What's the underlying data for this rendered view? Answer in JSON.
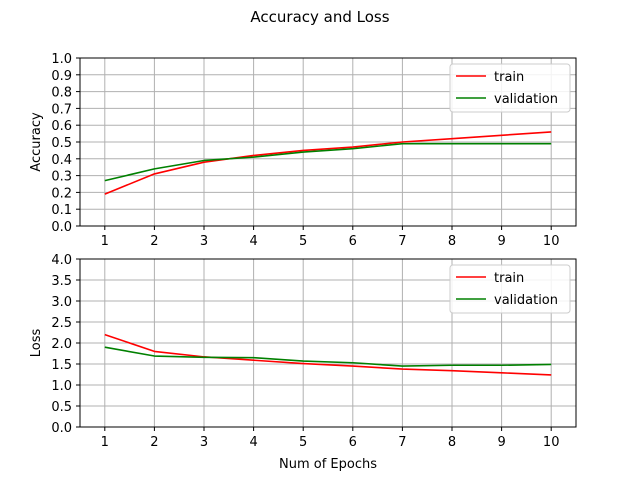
{
  "figure": {
    "title": "Accuracy and Loss"
  },
  "chart_data": [
    {
      "type": "line",
      "title": "",
      "xlabel": "",
      "ylabel": "Accuracy",
      "x": [
        1,
        2,
        3,
        4,
        5,
        6,
        7,
        8,
        9,
        10
      ],
      "xlim": [
        0.5,
        10.5
      ],
      "ylim": [
        0,
        1.0
      ],
      "yticks": [
        0.0,
        0.1,
        0.2,
        0.3,
        0.4,
        0.5,
        0.6,
        0.7,
        0.8,
        0.9,
        1.0
      ],
      "ytick_labels": [
        "0.0",
        "0.1",
        "0.2",
        "0.3",
        "0.4",
        "0.5",
        "0.6",
        "0.7",
        "0.8",
        "0.9",
        "1.0"
      ],
      "grid": true,
      "legend_position": "top-right",
      "series": [
        {
          "name": "train",
          "color": "#ff0000",
          "values": [
            0.19,
            0.31,
            0.38,
            0.42,
            0.45,
            0.47,
            0.5,
            0.52,
            0.54,
            0.56
          ]
        },
        {
          "name": "validation",
          "color": "#008000",
          "values": [
            0.27,
            0.34,
            0.39,
            0.41,
            0.44,
            0.46,
            0.49,
            0.49,
            0.49,
            0.49
          ]
        }
      ]
    },
    {
      "type": "line",
      "title": "",
      "xlabel": "Num of Epochs",
      "ylabel": "Loss",
      "x": [
        1,
        2,
        3,
        4,
        5,
        6,
        7,
        8,
        9,
        10
      ],
      "xlim": [
        0.5,
        10.5
      ],
      "ylim": [
        0,
        4.0
      ],
      "yticks": [
        0.0,
        0.5,
        1.0,
        1.5,
        2.0,
        2.5,
        3.0,
        3.5,
        4.0
      ],
      "ytick_labels": [
        "0.0",
        "0.5",
        "1.0",
        "1.5",
        "2.0",
        "2.5",
        "3.0",
        "3.5",
        "4.0"
      ],
      "grid": true,
      "legend_position": "top-right",
      "series": [
        {
          "name": "train",
          "color": "#ff0000",
          "values": [
            2.2,
            1.8,
            1.67,
            1.59,
            1.51,
            1.45,
            1.38,
            1.34,
            1.29,
            1.24
          ]
        },
        {
          "name": "validation",
          "color": "#008000",
          "values": [
            1.9,
            1.69,
            1.66,
            1.65,
            1.57,
            1.53,
            1.45,
            1.47,
            1.47,
            1.49
          ]
        }
      ]
    }
  ]
}
